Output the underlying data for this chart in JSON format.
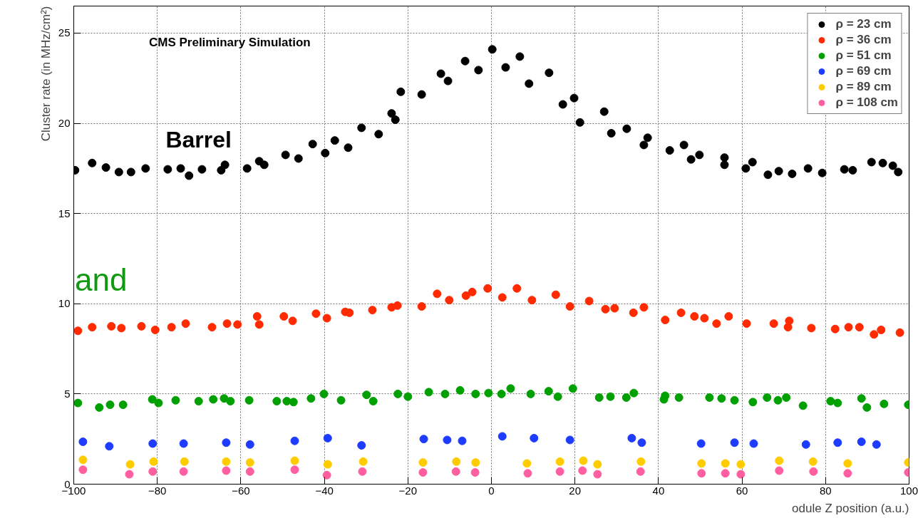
{
  "chart_data": {
    "type": "scatter",
    "xlabel": "odule Z position (a.u.)",
    "ylabel": "Cluster rate (in MHz/cm²)",
    "annotations": [
      "CMS Preliminary Simulation",
      "Barrel",
      "and"
    ],
    "xlim": [
      -100,
      100
    ],
    "xticks": [
      -100,
      -80,
      -60,
      -40,
      -20,
      0,
      20,
      40,
      60,
      80,
      100
    ],
    "ylim": [
      0,
      26.5
    ],
    "yticks": [
      0,
      5,
      10,
      15,
      20,
      25
    ],
    "grid": true,
    "legend": "top right",
    "marker": "circle",
    "series": [
      {
        "name": "ρ = 23 cm",
        "color": "#000000",
        "x": [
          -99.7,
          -95.6,
          -92.3,
          -89.2,
          -86.3,
          -82.8,
          -77.5,
          -74.4,
          -72.4,
          -69.3,
          -64.7,
          -63.8,
          -58.5,
          -55.6,
          -54.4,
          -49.3,
          -46.2,
          -42.8,
          -39.8,
          -37.5,
          -34.3,
          -31.1,
          -27.0,
          -21.7,
          -23.9,
          -23.0,
          -16.7,
          -12.1,
          -10.4,
          -6.3,
          -3.1,
          0.2,
          3.4,
          6.8,
          9.0,
          13.8,
          17.1,
          19.8,
          21.2,
          27.0,
          28.7,
          32.4,
          36.5,
          37.4,
          42.7,
          46.1,
          47.8,
          49.8,
          55.8,
          55.8,
          60.9,
          62.5,
          66.2,
          68.8,
          72.0,
          75.8,
          79.2,
          84.5,
          86.5,
          91.0,
          93.7,
          96.1,
          97.4
        ],
        "values": [
          17.4,
          17.8,
          17.55,
          17.3,
          17.3,
          17.5,
          17.45,
          17.5,
          17.1,
          17.45,
          17.4,
          17.7,
          17.5,
          17.9,
          17.7,
          18.25,
          18.05,
          18.85,
          18.35,
          19.05,
          18.65,
          19.75,
          19.4,
          21.75,
          20.55,
          20.2,
          21.6,
          22.75,
          22.35,
          23.45,
          22.95,
          24.1,
          23.1,
          23.7,
          22.2,
          22.8,
          21.05,
          21.4,
          20.05,
          20.65,
          19.45,
          19.7,
          18.8,
          19.2,
          18.5,
          18.8,
          18.0,
          18.25,
          18.1,
          17.7,
          17.5,
          17.85,
          17.15,
          17.35,
          17.2,
          17.5,
          17.25,
          17.45,
          17.4,
          17.85,
          17.8,
          17.65,
          17.3
        ]
      },
      {
        "name": "ρ = 36 cm",
        "color": "#ff2a00",
        "x": [
          -99.0,
          -95.6,
          -91.0,
          -88.6,
          -83.8,
          -80.5,
          -76.6,
          -73.2,
          -66.9,
          -63.3,
          -60.8,
          -56.1,
          -55.6,
          -49.7,
          -47.6,
          -42.0,
          -39.4,
          -35.0,
          -34.0,
          -28.5,
          -23.9,
          -22.5,
          -16.7,
          -13.0,
          -10.1,
          -6.1,
          -4.6,
          -0.9,
          2.6,
          6.1,
          9.7,
          15.4,
          18.8,
          23.4,
          27.3,
          29.5,
          34.0,
          36.5,
          41.6,
          45.4,
          48.6,
          51.0,
          53.9,
          56.8,
          61.1,
          67.6,
          71.0,
          71.3,
          76.6,
          82.3,
          85.5,
          88.1,
          91.6,
          93.3,
          97.8
        ],
        "values": [
          8.5,
          8.7,
          8.75,
          8.65,
          8.75,
          8.55,
          8.7,
          8.9,
          8.7,
          8.9,
          8.85,
          9.3,
          8.85,
          9.3,
          9.05,
          9.45,
          9.2,
          9.55,
          9.5,
          9.65,
          9.8,
          9.9,
          9.85,
          10.55,
          10.2,
          10.45,
          10.65,
          10.85,
          10.35,
          10.85,
          10.2,
          10.5,
          9.85,
          10.15,
          9.7,
          9.75,
          9.5,
          9.8,
          9.1,
          9.5,
          9.3,
          9.2,
          8.9,
          9.3,
          8.9,
          8.9,
          8.7,
          9.05,
          8.65,
          8.6,
          8.7,
          8.7,
          8.3,
          8.55,
          8.4
        ]
      },
      {
        "name": "ρ = 51 cm",
        "color": "#00a000",
        "x": [
          -99.0,
          -93.9,
          -91.3,
          -88.2,
          -81.2,
          -79.7,
          -75.6,
          -70.1,
          -66.6,
          -64.0,
          -62.5,
          -58.0,
          -51.4,
          -49.0,
          -47.4,
          -43.2,
          -40.1,
          -36.0,
          -29.9,
          -28.3,
          -22.4,
          -20.0,
          -15.0,
          -11.1,
          -7.5,
          -3.8,
          -0.7,
          2.4,
          4.6,
          9.4,
          13.7,
          15.9,
          19.5,
          25.8,
          28.5,
          32.3,
          34.1,
          41.3,
          41.6,
          44.9,
          52.2,
          55.1,
          58.2,
          62.6,
          66.0,
          68.6,
          70.6,
          74.6,
          81.2,
          82.9,
          88.6,
          89.9,
          94.0,
          99.8
        ],
        "values": [
          4.5,
          4.25,
          4.4,
          4.4,
          4.7,
          4.5,
          4.65,
          4.6,
          4.7,
          4.75,
          4.6,
          4.65,
          4.6,
          4.6,
          4.55,
          4.75,
          5.0,
          4.65,
          4.95,
          4.6,
          5.0,
          4.85,
          5.1,
          5.0,
          5.2,
          5.0,
          5.05,
          5.0,
          5.3,
          5.0,
          5.15,
          4.85,
          5.3,
          4.8,
          4.85,
          4.8,
          5.05,
          4.7,
          4.9,
          4.8,
          4.8,
          4.75,
          4.65,
          4.55,
          4.8,
          4.65,
          4.8,
          4.35,
          4.6,
          4.5,
          4.75,
          4.25,
          4.45,
          4.4
        ]
      },
      {
        "name": "ρ = 69 cm",
        "color": "#1e3cff",
        "x": [
          -97.8,
          -91.5,
          -81.1,
          -73.7,
          -63.5,
          -57.8,
          -47.1,
          -39.2,
          -31.1,
          -16.2,
          -10.6,
          -7.0,
          2.6,
          10.2,
          18.8,
          33.6,
          36.0,
          50.2,
          58.2,
          62.8,
          75.3,
          82.9,
          88.6,
          92.2
        ],
        "values": [
          2.35,
          2.1,
          2.25,
          2.25,
          2.3,
          2.2,
          2.4,
          2.55,
          2.15,
          2.5,
          2.45,
          2.4,
          2.65,
          2.55,
          2.45,
          2.55,
          2.3,
          2.25,
          2.3,
          2.25,
          2.2,
          2.3,
          2.35,
          2.2
        ]
      },
      {
        "name": "ρ = 89 cm",
        "color": "#ffcc00",
        "x": [
          -97.8,
          -86.5,
          -80.9,
          -73.5,
          -63.5,
          -57.8,
          -47.1,
          -39.2,
          -30.7,
          -16.4,
          -8.4,
          -3.8,
          8.5,
          16.4,
          22.0,
          25.4,
          35.8,
          50.3,
          56.0,
          59.7,
          68.9,
          77.0,
          85.3,
          99.8
        ],
        "values": [
          1.35,
          1.1,
          1.25,
          1.25,
          1.25,
          1.2,
          1.3,
          1.1,
          1.25,
          1.2,
          1.25,
          1.2,
          1.15,
          1.25,
          1.3,
          1.1,
          1.25,
          1.15,
          1.15,
          1.1,
          1.3,
          1.25,
          1.15,
          1.2
        ]
      },
      {
        "name": "ρ = 108 cm",
        "color": "#ff5fa0",
        "x": [
          -97.8,
          -86.7,
          -81.1,
          -73.7,
          -63.5,
          -57.8,
          -47.1,
          -39.4,
          -30.9,
          -16.4,
          -8.5,
          -3.9,
          8.7,
          16.4,
          21.8,
          25.4,
          35.7,
          50.3,
          56.0,
          59.7,
          68.9,
          77.1,
          85.3,
          99.8
        ],
        "values": [
          0.8,
          0.55,
          0.7,
          0.7,
          0.75,
          0.7,
          0.8,
          0.5,
          0.7,
          0.65,
          0.7,
          0.65,
          0.6,
          0.7,
          0.75,
          0.55,
          0.7,
          0.6,
          0.6,
          0.55,
          0.75,
          0.7,
          0.6,
          0.65
        ]
      }
    ]
  }
}
